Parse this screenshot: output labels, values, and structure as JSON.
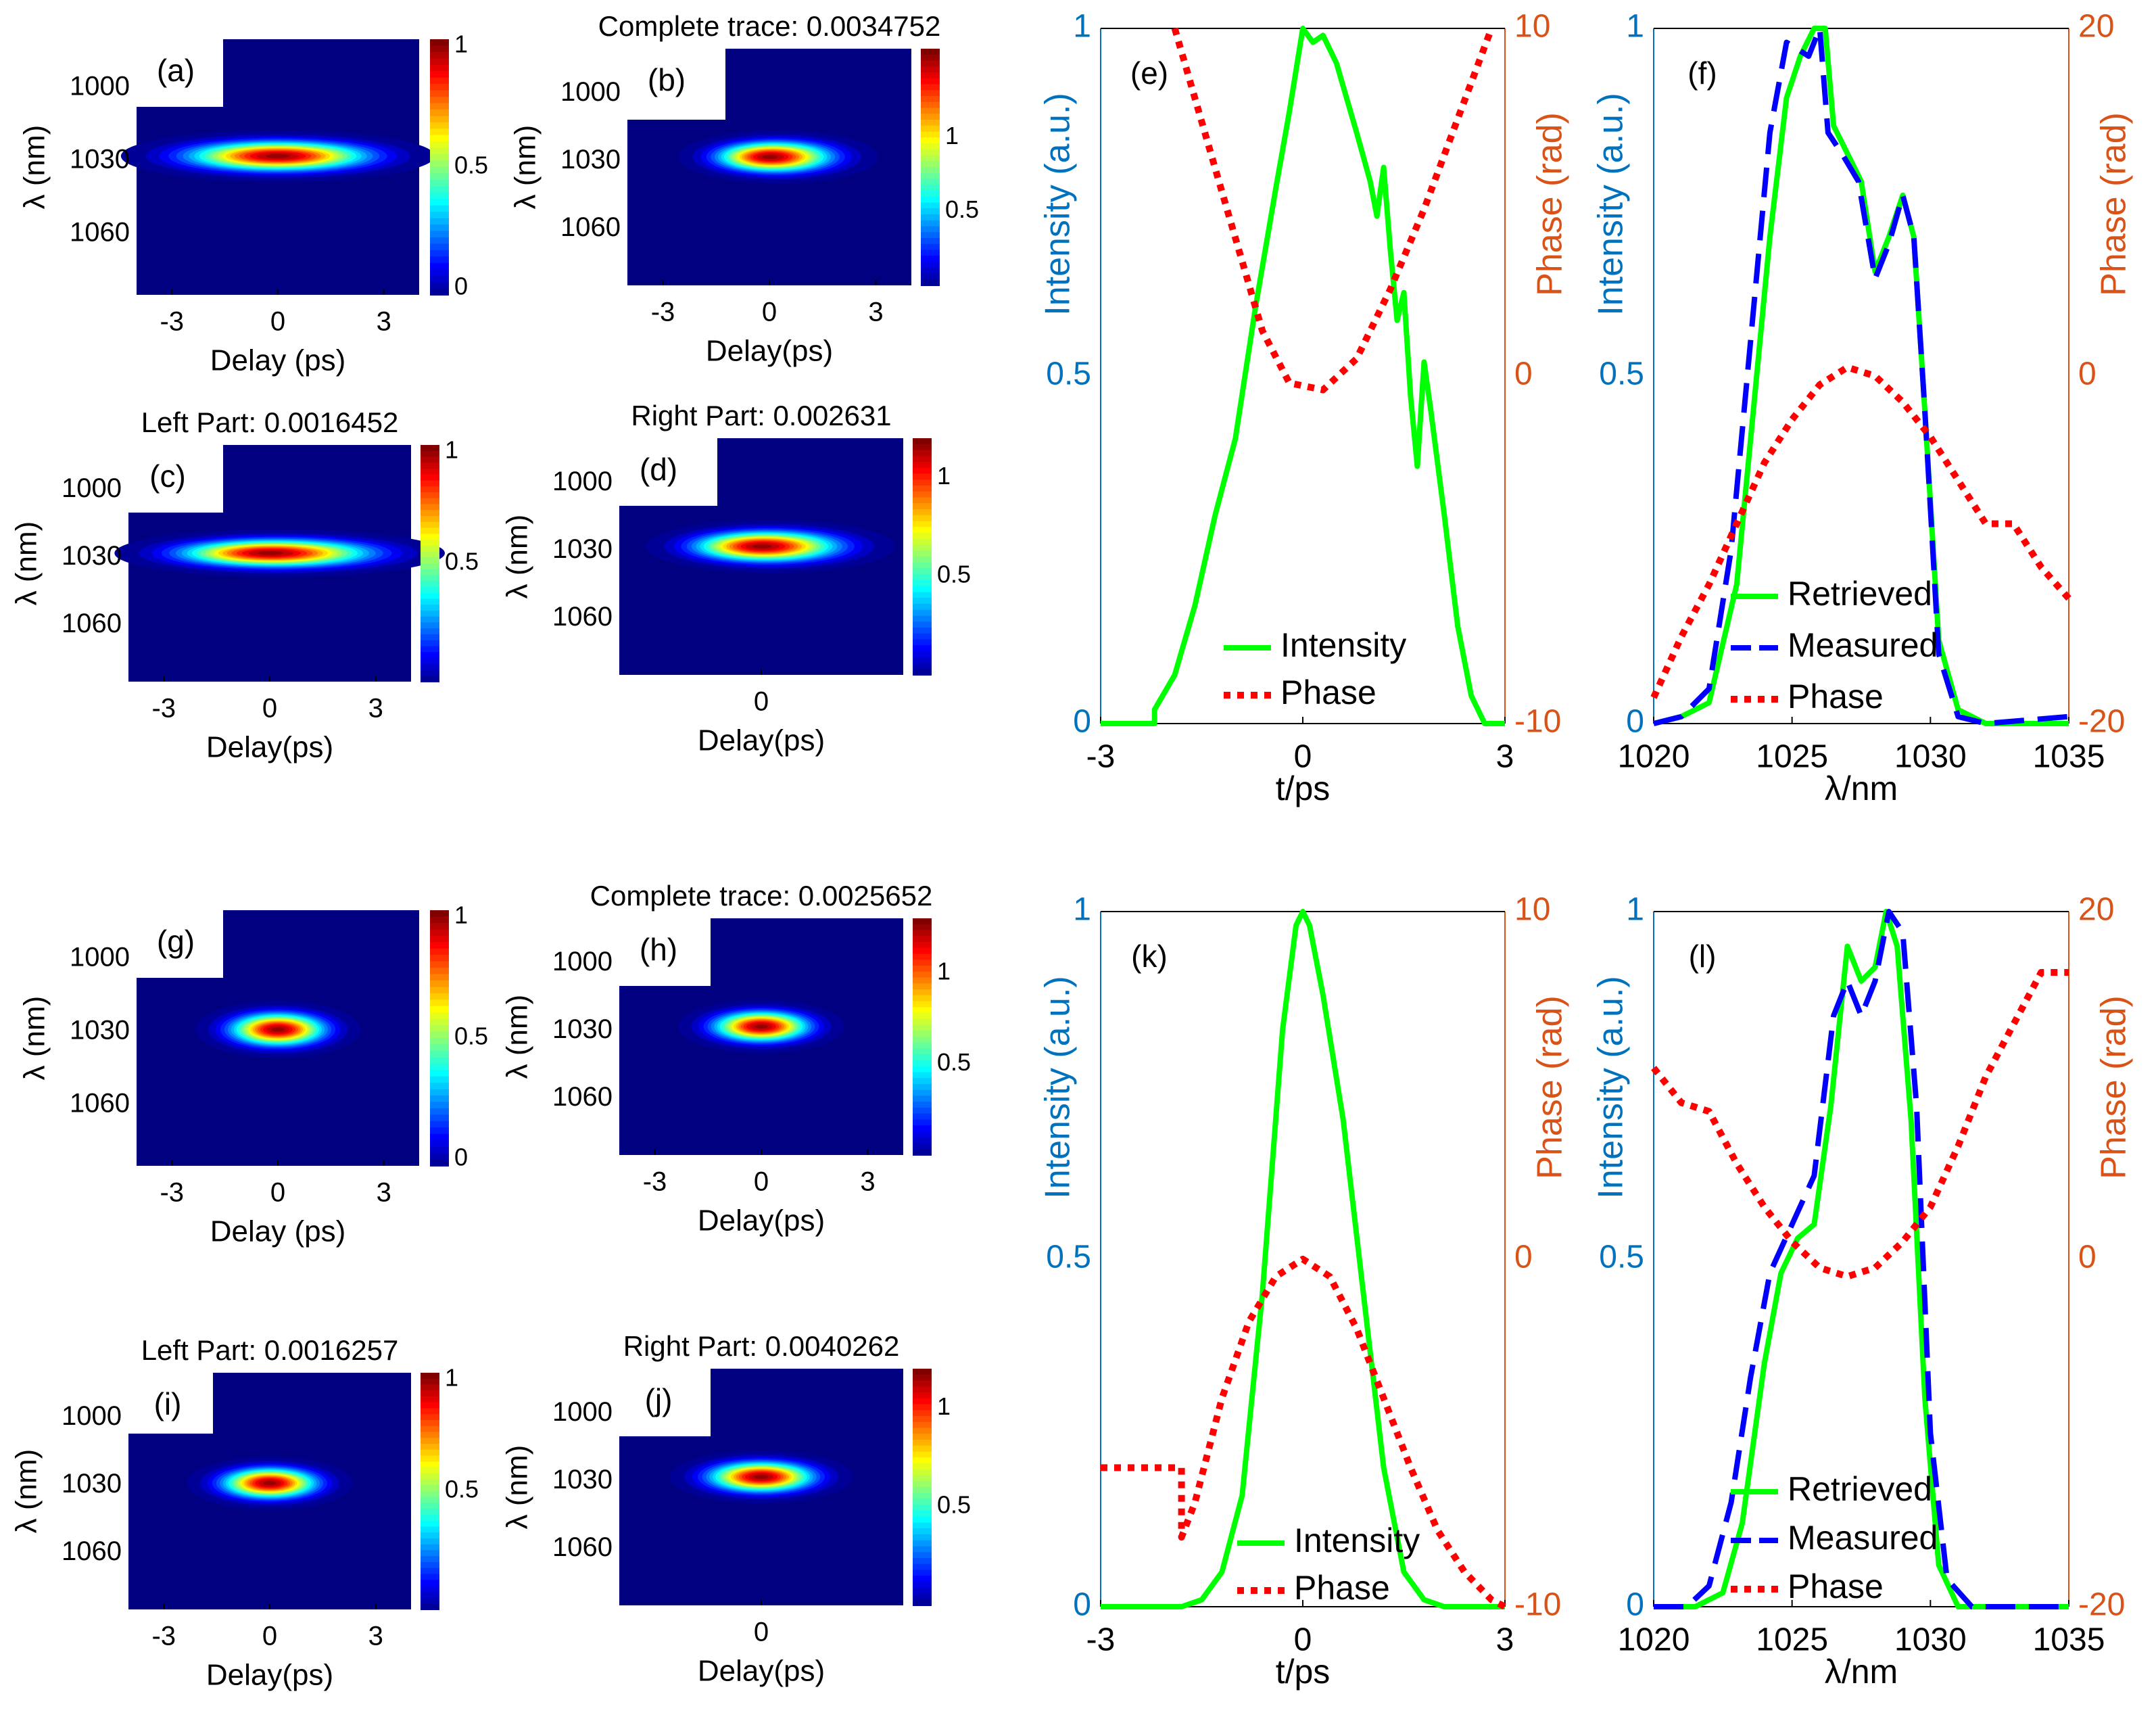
{
  "colors": {
    "left_axis": "#0072BD",
    "right_axis": "#D95319",
    "intensity": "#00FF00",
    "measured": "#0000FF",
    "phase": "#FF0000"
  },
  "chart_data": [
    {
      "panel": "a",
      "type": "heatmap",
      "title": "",
      "label": "(a)",
      "xlabel": "Delay (ps)",
      "ylabel": "λ (nm)",
      "xlim": [
        -4,
        4
      ],
      "ylim": [
        1085,
        980
      ],
      "xticks": [
        -3,
        0,
        3
      ],
      "yticks": [
        1000,
        1030,
        1060
      ],
      "colorbar_ticks": [
        "0",
        "0.5",
        "1"
      ],
      "cbar_max": 1,
      "blob": {
        "center": [
          0,
          1028
        ],
        "sx": 1.9,
        "sy": 4.5,
        "tail": 0
      }
    },
    {
      "panel": "b",
      "type": "heatmap",
      "title": "Complete trace: 0.0034752",
      "label": "(b)",
      "xlabel": "Delay(ps)",
      "ylabel": "λ (nm)",
      "xlim": [
        -4,
        4
      ],
      "ylim": [
        1085,
        980
      ],
      "xticks": [
        -3,
        0,
        3
      ],
      "yticks": [
        1000,
        1030,
        1060
      ],
      "colorbar_ticks": [
        "0.5",
        "1"
      ],
      "cbar_max": 1.6,
      "blob": {
        "center": [
          0,
          1028
        ],
        "sx": 1.2,
        "sy": 5,
        "tail": 0.6
      }
    },
    {
      "panel": "c",
      "type": "heatmap",
      "title": "Left Part: 0.0016452",
      "label": "(c)",
      "xlabel": "Delay(ps)",
      "ylabel": "λ (nm)",
      "xlim": [
        -4,
        4
      ],
      "ylim": [
        1085,
        980
      ],
      "xticks": [
        -3,
        0,
        3
      ],
      "yticks": [
        1000,
        1030,
        1060
      ],
      "colorbar_ticks": [
        "0.5",
        "1"
      ],
      "cbar_max": 1,
      "blob": {
        "center": [
          0,
          1028
        ],
        "sx": 2.0,
        "sy": 4.5,
        "tail": 0.4
      }
    },
    {
      "panel": "d",
      "type": "heatmap",
      "title": "Right Part: 0.002631",
      "label": "(d)",
      "xlabel": "Delay(ps)",
      "ylabel": "λ (nm)",
      "xlim": [
        -4,
        4
      ],
      "ylim": [
        1085,
        980
      ],
      "xticks": [
        0
      ],
      "yticks": [
        1000,
        1030,
        1060
      ],
      "colorbar_ticks": [
        "0.5",
        "1"
      ],
      "cbar_max": 1.2,
      "blob": {
        "center": [
          0,
          1028
        ],
        "sx": 1.5,
        "sy": 5,
        "tail": 0.5
      }
    },
    {
      "panel": "g",
      "type": "heatmap",
      "title": "",
      "label": "(g)",
      "xlabel": "Delay (ps)",
      "ylabel": "λ (nm)",
      "xlim": [
        -4,
        4
      ],
      "ylim": [
        1085,
        980
      ],
      "xticks": [
        -3,
        0,
        3
      ],
      "yticks": [
        1000,
        1030,
        1060
      ],
      "colorbar_ticks": [
        "0",
        "0.5",
        "1"
      ],
      "cbar_max": 1,
      "blob": {
        "center": [
          0,
          1029
        ],
        "sx": 1.0,
        "sy": 5,
        "tail": 0
      }
    },
    {
      "panel": "h",
      "type": "heatmap",
      "title": "Complete trace: 0.0025652",
      "label": "(h)",
      "xlabel": "Delay(ps)",
      "ylabel": "λ (nm)",
      "xlim": [
        -4,
        4
      ],
      "ylim": [
        1085,
        980
      ],
      "xticks": [
        -3,
        0,
        3
      ],
      "yticks": [
        1000,
        1030,
        1060
      ],
      "colorbar_ticks": [
        "0.5",
        "1"
      ],
      "cbar_max": 1.3,
      "blob": {
        "center": [
          0,
          1028
        ],
        "sx": 1.0,
        "sy": 5,
        "tail": 0
      }
    },
    {
      "panel": "i",
      "type": "heatmap",
      "title": "Left Part: 0.0016257",
      "label": "(i)",
      "xlabel": "Delay(ps)",
      "ylabel": "λ (nm)",
      "xlim": [
        -4,
        4
      ],
      "ylim": [
        1085,
        980
      ],
      "xticks": [
        -3,
        0,
        3
      ],
      "yticks": [
        1000,
        1030,
        1060
      ],
      "colorbar_ticks": [
        "0.5",
        "1"
      ],
      "cbar_max": 1,
      "blob": {
        "center": [
          0,
          1029
        ],
        "sx": 1.0,
        "sy": 5,
        "tail": 0
      }
    },
    {
      "panel": "j",
      "type": "heatmap",
      "title": "Right Part: 0.0040262",
      "label": "(j)",
      "xlabel": "Delay(ps)",
      "ylabel": "λ (nm)",
      "xlim": [
        -4,
        4
      ],
      "ylim": [
        1085,
        980
      ],
      "xticks": [
        0
      ],
      "yticks": [
        1000,
        1030,
        1060
      ],
      "colorbar_ticks": [
        "0.5",
        "1"
      ],
      "cbar_max": 1.2,
      "blob": {
        "center": [
          0,
          1028
        ],
        "sx": 1.1,
        "sy": 5,
        "tail": 0
      }
    },
    {
      "panel": "e",
      "type": "line",
      "label": "(e)",
      "xlabel": "t/ps",
      "ylabel": "Intensity (a.u.)",
      "ylabel_right": "Phase (rad)",
      "xlim": [
        -3,
        3
      ],
      "ylim": [
        0,
        1
      ],
      "ylim_right": [
        -10,
        10
      ],
      "xticks": [
        "-3",
        "0",
        "3"
      ],
      "yticks": [
        "0",
        "0.5",
        "1"
      ],
      "yticks_right": [
        "-10",
        "0",
        "10"
      ],
      "legend": [
        "Intensity",
        "Phase"
      ],
      "series": [
        {
          "name": "Intensity",
          "axis": "left",
          "style": "solid",
          "color": "intensity",
          "x": [
            -3,
            -2.2,
            -2.2,
            -1.9,
            -1.6,
            -1.3,
            -1.0,
            -0.7,
            -0.4,
            -0.2,
            0,
            0.15,
            0.3,
            0.5,
            0.8,
            1.0,
            1.1,
            1.2,
            1.3,
            1.4,
            1.5,
            1.6,
            1.7,
            1.8,
            1.9,
            2.1,
            2.3,
            2.5,
            2.7,
            3
          ],
          "y": [
            0,
            0,
            0.02,
            0.07,
            0.17,
            0.3,
            0.41,
            0.6,
            0.77,
            0.88,
            1.0,
            0.98,
            0.99,
            0.95,
            0.85,
            0.78,
            0.73,
            0.8,
            0.68,
            0.58,
            0.62,
            0.47,
            0.37,
            0.52,
            0.45,
            0.3,
            0.14,
            0.04,
            0,
            0
          ]
        },
        {
          "name": "Phase",
          "axis": "right",
          "style": "dotted",
          "color": "phase",
          "x": [
            -1.9,
            -1.2,
            -0.6,
            -0.2,
            0.3,
            0.8,
            1.3,
            1.8,
            2.3,
            2.8
          ],
          "y": [
            10,
            5.3,
            1.3,
            -0.2,
            -0.4,
            0.5,
            2.5,
            4.8,
            7.4,
            10
          ]
        }
      ]
    },
    {
      "panel": "f",
      "type": "line",
      "label": "(f)",
      "xlabel": "λ/nm",
      "ylabel": "Intensity (a.u.)",
      "ylabel_right": "Phase (rad)",
      "xlim": [
        1020,
        1035
      ],
      "ylim": [
        0,
        1
      ],
      "ylim_right": [
        -20,
        20
      ],
      "xticks": [
        "1020",
        "1025",
        "1030",
        "1035"
      ],
      "yticks": [
        "0",
        "0.5",
        "1"
      ],
      "yticks_right": [
        "-20",
        "0",
        "20"
      ],
      "legend": [
        "Retrieved",
        "Measured",
        "Phase"
      ],
      "series": [
        {
          "name": "Retrieved",
          "axis": "left",
          "style": "solid",
          "color": "intensity",
          "x": [
            1020,
            1021,
            1022,
            1023,
            1023.6,
            1024.2,
            1024.8,
            1025.3,
            1025.8,
            1026.2,
            1026.5,
            1027,
            1027.5,
            1028,
            1028.5,
            1029,
            1029.4,
            1029.8,
            1030.3,
            1031,
            1032,
            1035
          ],
          "y": [
            0,
            0.01,
            0.03,
            0.2,
            0.45,
            0.7,
            0.9,
            0.96,
            1.0,
            1.0,
            0.86,
            0.82,
            0.78,
            0.65,
            0.7,
            0.76,
            0.7,
            0.45,
            0.12,
            0.02,
            0,
            0
          ]
        },
        {
          "name": "Measured",
          "axis": "left",
          "style": "dashed",
          "color": "measured",
          "x": [
            1020,
            1021,
            1022,
            1022.8,
            1023.5,
            1024.2,
            1024.8,
            1025.2,
            1025.6,
            1026,
            1026.3,
            1026.8,
            1027.4,
            1028,
            1028.5,
            1029,
            1029.4,
            1029.8,
            1030.3,
            1031,
            1032,
            1035
          ],
          "y": [
            0,
            0.01,
            0.05,
            0.25,
            0.55,
            0.85,
            0.98,
            0.97,
            0.96,
            1.0,
            0.85,
            0.82,
            0.78,
            0.64,
            0.69,
            0.76,
            0.7,
            0.45,
            0.1,
            0.01,
            0,
            0.01
          ]
        },
        {
          "name": "Phase",
          "axis": "right",
          "style": "dotted",
          "color": "phase",
          "x": [
            1020,
            1021,
            1022,
            1023,
            1024,
            1025,
            1026,
            1027,
            1028,
            1029,
            1030,
            1031,
            1032,
            1033,
            1034,
            1035
          ],
          "y": [
            -18.5,
            -15,
            -12,
            -8.5,
            -5,
            -2.5,
            -0.5,
            0.5,
            0,
            -1.5,
            -3.5,
            -6,
            -8.5,
            -8.5,
            -11,
            -12.8
          ]
        }
      ]
    },
    {
      "panel": "k",
      "type": "line",
      "label": "(k)",
      "xlabel": "t/ps",
      "ylabel": "Intensity (a.u.)",
      "ylabel_right": "Phase (rad)",
      "xlim": [
        -3,
        3
      ],
      "ylim": [
        0,
        1
      ],
      "ylim_right": [
        -10,
        10
      ],
      "xticks": [
        "-3",
        "0",
        "3"
      ],
      "yticks": [
        "0",
        "0.5",
        "1"
      ],
      "yticks_right": [
        "-10",
        "0",
        "10"
      ],
      "legend": [
        "Intensity",
        "Phase"
      ],
      "series": [
        {
          "name": "Intensity",
          "axis": "left",
          "style": "solid",
          "color": "intensity",
          "x": [
            -3,
            -1.8,
            -1.5,
            -1.2,
            -0.9,
            -0.6,
            -0.3,
            -0.1,
            0,
            0.1,
            0.3,
            0.6,
            0.9,
            1.2,
            1.5,
            1.8,
            2.1,
            3
          ],
          "y": [
            0,
            0,
            0.01,
            0.05,
            0.16,
            0.45,
            0.83,
            0.98,
            1.0,
            0.98,
            0.88,
            0.7,
            0.45,
            0.2,
            0.05,
            0.01,
            0,
            0
          ]
        },
        {
          "name": "Phase",
          "axis": "right",
          "style": "dotted",
          "color": "phase",
          "x": [
            -3,
            -1.8,
            -1.8,
            -1.6,
            -1.2,
            -0.8,
            -0.4,
            0,
            0.4,
            0.8,
            1.2,
            1.6,
            2.0,
            2.4,
            2.8,
            3
          ],
          "y": [
            -6,
            -6,
            -8,
            -7,
            -4,
            -1.8,
            -0.5,
            0,
            -0.5,
            -2,
            -4,
            -6,
            -7.8,
            -9,
            -9.8,
            -10
          ]
        }
      ]
    },
    {
      "panel": "l",
      "type": "line",
      "label": "(l)",
      "xlabel": "λ/nm",
      "ylabel": "Intensity (a.u.)",
      "ylabel_right": "Phase (rad)",
      "xlim": [
        1020,
        1035
      ],
      "ylim": [
        0,
        1
      ],
      "ylim_right": [
        -20,
        20
      ],
      "xticks": [
        "1020",
        "1025",
        "1030",
        "1035"
      ],
      "yticks": [
        "0",
        "0.5",
        "1"
      ],
      "yticks_right": [
        "-20",
        "0",
        "20"
      ],
      "legend": [
        "Retrieved",
        "Measured",
        "Phase"
      ],
      "series": [
        {
          "name": "Retrieved",
          "axis": "left",
          "style": "solid",
          "color": "intensity",
          "x": [
            1020,
            1021.5,
            1022.5,
            1023.2,
            1024,
            1024.6,
            1025.2,
            1025.8,
            1026.4,
            1027,
            1027.5,
            1028,
            1028.4,
            1028.8,
            1029.3,
            1029.8,
            1030.3,
            1031,
            1032,
            1035
          ],
          "y": [
            0,
            0,
            0.02,
            0.12,
            0.35,
            0.48,
            0.53,
            0.55,
            0.72,
            0.95,
            0.9,
            0.92,
            1.0,
            0.95,
            0.7,
            0.3,
            0.06,
            0,
            0,
            0
          ]
        },
        {
          "name": "Measured",
          "axis": "left",
          "style": "dashed",
          "color": "measured",
          "x": [
            1020,
            1021.2,
            1022,
            1022.8,
            1023.5,
            1024.2,
            1025,
            1025.8,
            1026.5,
            1027,
            1027.5,
            1028,
            1028.5,
            1029,
            1029.5,
            1030,
            1030.6,
            1031.5,
            1032,
            1035
          ],
          "y": [
            0,
            0,
            0.03,
            0.15,
            0.33,
            0.48,
            0.55,
            0.62,
            0.85,
            0.9,
            0.85,
            0.9,
            1.0,
            0.97,
            0.72,
            0.25,
            0.04,
            0,
            0,
            0
          ]
        },
        {
          "name": "Phase",
          "axis": "right",
          "style": "dotted",
          "color": "phase",
          "x": [
            1020,
            1021,
            1022,
            1023,
            1024,
            1025,
            1026,
            1027,
            1028,
            1029,
            1030,
            1031,
            1032,
            1033,
            1034,
            1035
          ],
          "y": [
            11,
            9,
            8.5,
            5.5,
            3,
            1,
            -0.5,
            -1,
            -0.5,
            1,
            3,
            6.5,
            10.5,
            13.5,
            16.5,
            16.5
          ]
        }
      ]
    }
  ]
}
